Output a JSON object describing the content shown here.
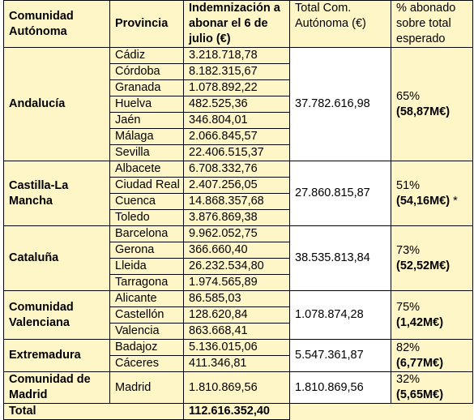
{
  "headers": {
    "comunidad": "Comunidad Autónoma",
    "provincia": "Provincia",
    "indemnizacion": "Indemnización a abonar el 6 de julio (€)",
    "total_com": "Total Com. Autónoma (€)",
    "porcentaje": "% abonado sobre total esperado"
  },
  "groups": [
    {
      "comunidad": "Andalucía",
      "total": "37.782.616,98",
      "pct": "65%",
      "pct_amount": "(58,87M€)",
      "note": "",
      "rows": [
        {
          "provincia": "Cádiz",
          "importe": "3.218.718,78"
        },
        {
          "provincia": "Córdoba",
          "importe": "8.182.315,67"
        },
        {
          "provincia": "Granada",
          "importe": "1.078.892,22"
        },
        {
          "provincia": "Huelva",
          "importe": "482.525,36"
        },
        {
          "provincia": "Jaén",
          "importe": "346.804,01"
        },
        {
          "provincia": "Málaga",
          "importe": "2.066.845,57"
        },
        {
          "provincia": "Sevilla",
          "importe": "22.406.515,37"
        }
      ]
    },
    {
      "comunidad": "Castilla-La Mancha",
      "total": "27.860.815,87",
      "pct": "51%",
      "pct_amount": "(54,16M€)",
      "note": "*",
      "rows": [
        {
          "provincia": "Albacete",
          "importe": "6.708.332,76"
        },
        {
          "provincia": "Ciudad Real",
          "importe": "2.407.256,05"
        },
        {
          "provincia": "Cuenca",
          "importe": "14.868.357,68"
        },
        {
          "provincia": "Toledo",
          "importe": "3.876.869,38"
        }
      ]
    },
    {
      "comunidad": "Cataluña",
      "total": "38.535.813,84",
      "pct": "73%",
      "pct_amount": "(52,52M€)",
      "note": "",
      "rows": [
        {
          "provincia": "Barcelona",
          "importe": "9.962.052,75"
        },
        {
          "provincia": "Gerona",
          "importe": "366.660,40"
        },
        {
          "provincia": "Lleida",
          "importe": "26.232.534,80"
        },
        {
          "provincia": "Tarragona",
          "importe": "1.974.565,89"
        }
      ]
    },
    {
      "comunidad": "Comunidad Valenciana",
      "total": "1.078.874,28",
      "pct": "75%",
      "pct_amount": "(1,42M€)",
      "note": "",
      "rows": [
        {
          "provincia": "Alicante",
          "importe": "86.585,03"
        },
        {
          "provincia": "Castellón",
          "importe": "128.620,84"
        },
        {
          "provincia": "Valencia",
          "importe": "863.668,41"
        }
      ]
    },
    {
      "comunidad": "Extremadura",
      "total": "5.547.361,87",
      "pct": "82%",
      "pct_amount": "(6,77M€)",
      "note": "",
      "rows": [
        {
          "provincia": "Badajoz",
          "importe": "5.136.015,06"
        },
        {
          "provincia": "Cáceres",
          "importe": "411.346,81"
        }
      ]
    },
    {
      "comunidad": "Comunidad de Madrid",
      "total": "1.810.869,56",
      "pct": "32%",
      "pct_amount": "(5,65M€)",
      "note": "",
      "rows": [
        {
          "provincia": "Madrid",
          "importe": "1.810.869,56"
        }
      ]
    }
  ],
  "total_row": {
    "label": "Total",
    "importe": "112.616.352,40"
  },
  "colors": {
    "header_bg": "#fff6c8",
    "border": "#000000"
  }
}
